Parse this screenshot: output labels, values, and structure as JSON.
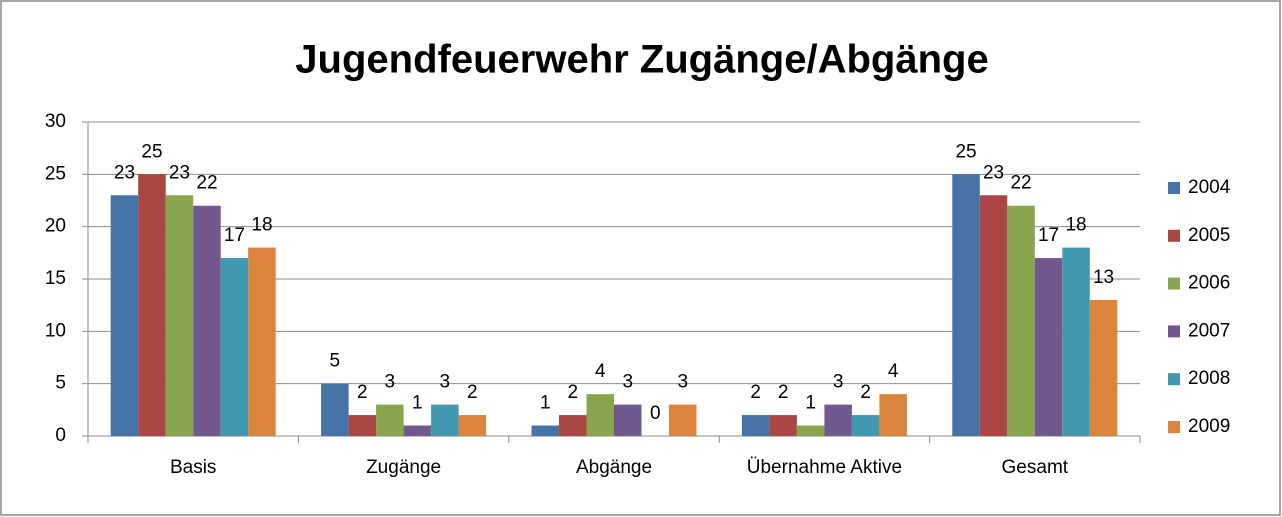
{
  "chart_data": {
    "type": "bar",
    "title": "Jugendfeuerwehr Zugänge/Abgänge",
    "categories": [
      "Basis",
      "Zugänge",
      "Abgänge",
      "Übernahme Aktive",
      "Gesamt"
    ],
    "series": [
      {
        "name": "2004",
        "color": "#4572a7",
        "values": [
          23,
          5,
          1,
          2,
          25
        ]
      },
      {
        "name": "2005",
        "color": "#aa4643",
        "values": [
          25,
          2,
          2,
          2,
          23
        ]
      },
      {
        "name": "2006",
        "color": "#89a54e",
        "values": [
          23,
          3,
          4,
          1,
          22
        ]
      },
      {
        "name": "2007",
        "color": "#71588f",
        "values": [
          22,
          1,
          3,
          3,
          17
        ]
      },
      {
        "name": "2008",
        "color": "#4198af",
        "values": [
          17,
          3,
          0,
          2,
          18
        ]
      },
      {
        "name": "2009",
        "color": "#db843d",
        "values": [
          18,
          2,
          3,
          4,
          13
        ]
      }
    ],
    "ylim": [
      0,
      30
    ],
    "yticks": [
      0,
      5,
      10,
      15,
      20,
      25,
      30
    ],
    "grid": true,
    "legend": "right"
  }
}
